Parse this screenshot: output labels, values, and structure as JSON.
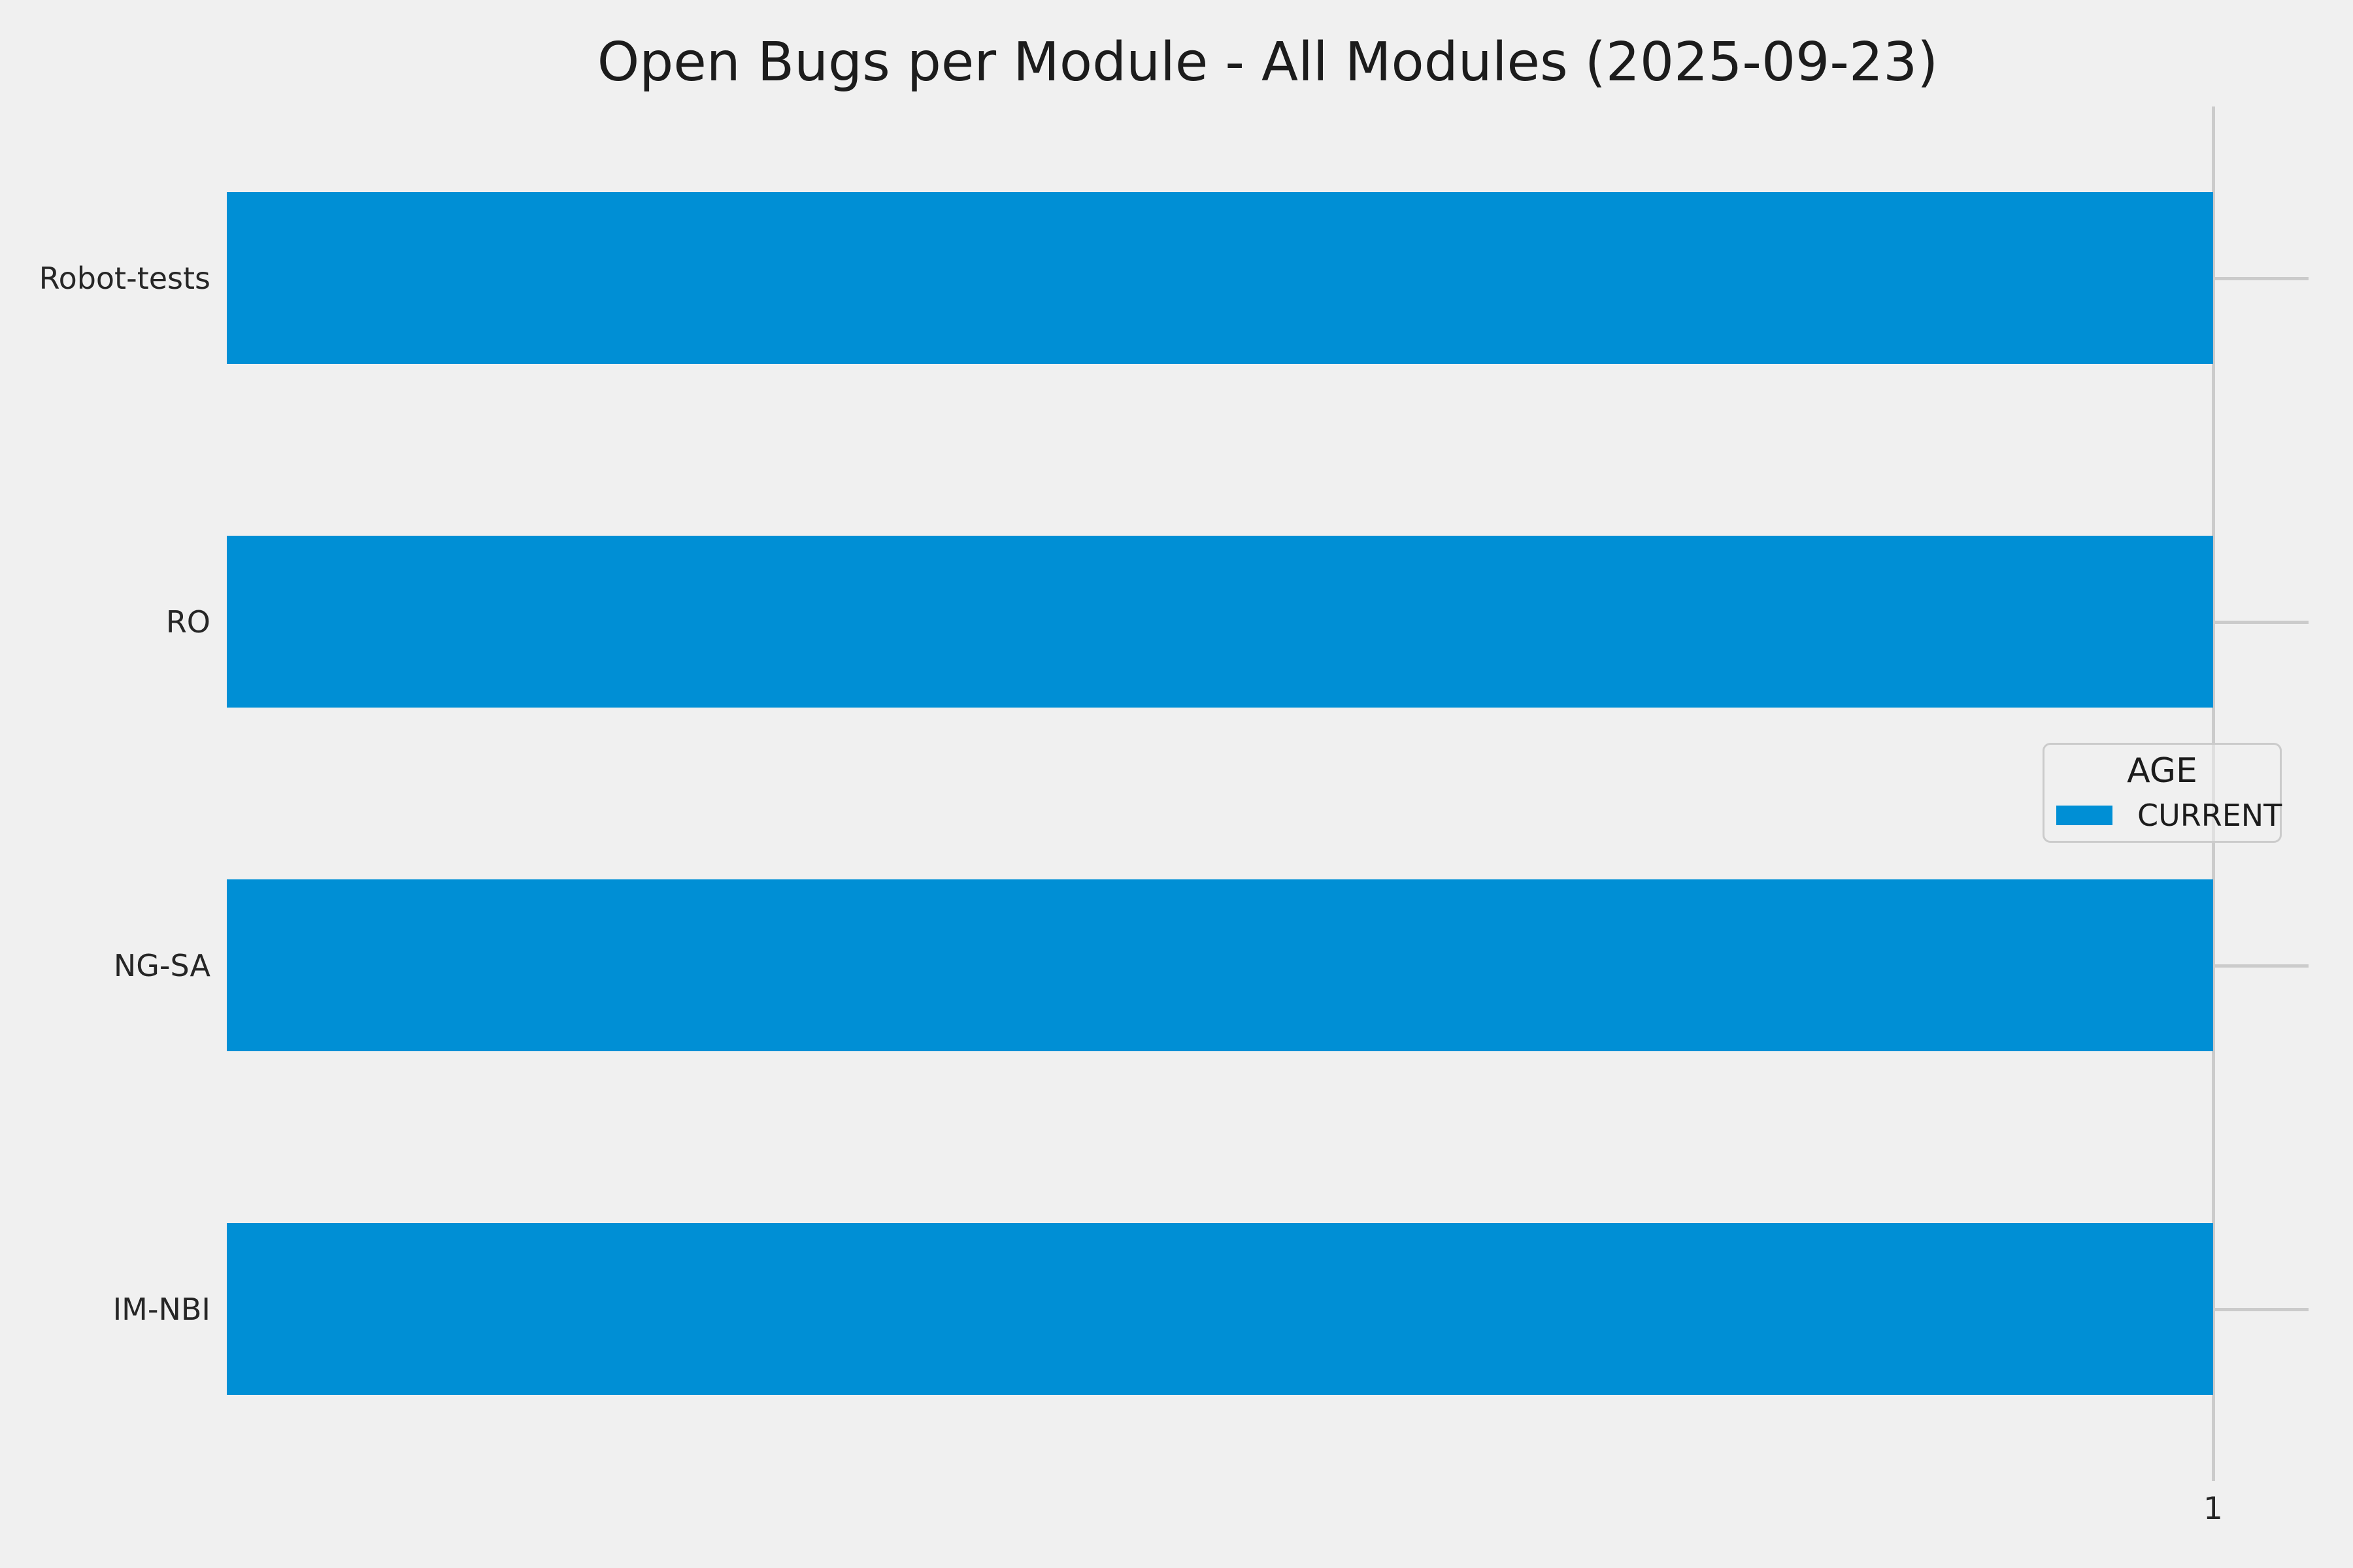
{
  "chart_data": {
    "type": "bar",
    "orientation": "horizontal",
    "title": "Open Bugs per Module - All Modules (2025-09-23)",
    "categories": [
      "Robot-tests",
      "RO",
      "NG-SA",
      "IM-NBI"
    ],
    "series": [
      {
        "name": "CURRENT",
        "values": [
          1,
          1,
          1,
          1
        ],
        "color": "#008fd5"
      }
    ],
    "xlabel": "",
    "ylabel": "",
    "xlim": [
      0,
      1.048
    ],
    "x_ticks": [
      1
    ],
    "grid": true,
    "legend": {
      "title": "AGE",
      "position": "center-right"
    },
    "style": {
      "background": "#f0f0f0",
      "grid_color": "#cbcbcb",
      "text_color": "#262626",
      "bar_color": "#008fd5"
    }
  }
}
